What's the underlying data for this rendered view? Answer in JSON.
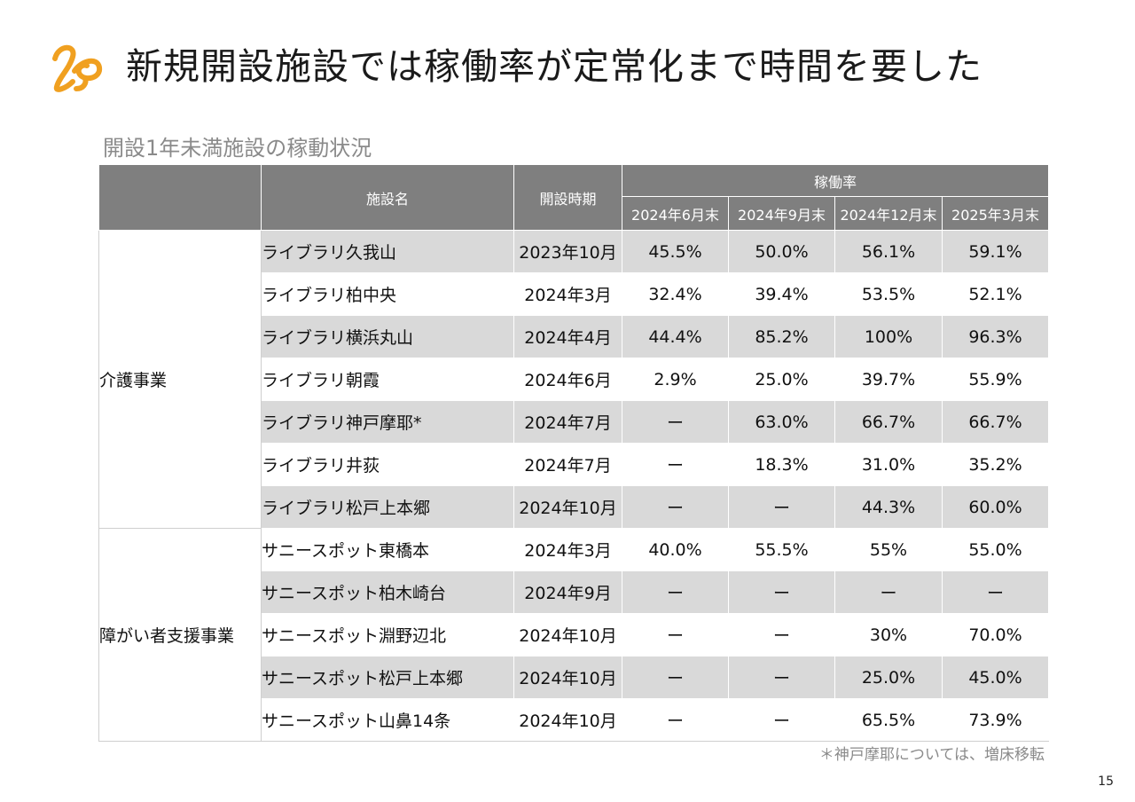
{
  "title": "新規開設施設では稼働率が定常化まで時間を要した",
  "table_caption": "開設1年未満施設の稼動状況",
  "headers": {
    "facility": "施設名",
    "opened": "開設時期",
    "rate": "稼働率",
    "periods": [
      "2024年6月末",
      "2024年9月末",
      "2024年12月末",
      "2025年3月末"
    ]
  },
  "groups": [
    {
      "segment": "介護事業",
      "rows": [
        {
          "name": "ライブラリ久我山",
          "opened": "2023年10月",
          "rates": [
            "45.5%",
            "50.0%",
            "56.1%",
            "59.1%"
          ]
        },
        {
          "name": "ライブラリ柏中央",
          "opened": "2024年3月",
          "rates": [
            "32.4%",
            "39.4%",
            "53.5%",
            "52.1%"
          ]
        },
        {
          "name": "ライブラリ横浜丸山",
          "opened": "2024年4月",
          "rates": [
            "44.4%",
            "85.2%",
            "100%",
            "96.3%"
          ]
        },
        {
          "name": "ライブラリ朝霞",
          "opened": "2024年6月",
          "rates": [
            "2.9%",
            "25.0%",
            "39.7%",
            "55.9%"
          ]
        },
        {
          "name": "ライブラリ神戸摩耶*",
          "opened": "2024年7月",
          "rates": [
            "ー",
            "63.0%",
            "66.7%",
            "66.7%"
          ]
        },
        {
          "name": "ライブラリ井荻",
          "opened": "2024年7月",
          "rates": [
            "ー",
            "18.3%",
            "31.0%",
            "35.2%"
          ]
        },
        {
          "name": "ライブラリ松戸上本郷",
          "opened": "2024年10月",
          "rates": [
            "ー",
            "ー",
            "44.3%",
            "60.0%"
          ]
        }
      ]
    },
    {
      "segment": "障がい者支援事業",
      "rows": [
        {
          "name": "サニースポット東橋本",
          "opened": "2024年3月",
          "rates": [
            "40.0%",
            "55.5%",
            "55%",
            "55.0%"
          ]
        },
        {
          "name": "サニースポット柏木崎台",
          "opened": "2024年9月",
          "rates": [
            "ー",
            "ー",
            "ー",
            "ー"
          ]
        },
        {
          "name": "サニースポット淵野辺北",
          "opened": "2024年10月",
          "rates": [
            "ー",
            "ー",
            "30%",
            "70.0%"
          ]
        },
        {
          "name": "サニースポット松戸上本郷",
          "opened": "2024年10月",
          "rates": [
            "ー",
            "ー",
            "25.0%",
            "45.0%"
          ]
        },
        {
          "name": "サニースポット山鼻14条",
          "opened": "2024年10月",
          "rates": [
            "ー",
            "ー",
            "65.5%",
            "73.9%"
          ]
        }
      ]
    }
  ],
  "footnote": "＊神戸摩耶については、増床移転",
  "page_number": "15",
  "colors": {
    "logo": "#f0a020",
    "header_bg": "#7f7f7f",
    "row_shade": "#d9d9d9",
    "caption": "#8a8a8a"
  }
}
